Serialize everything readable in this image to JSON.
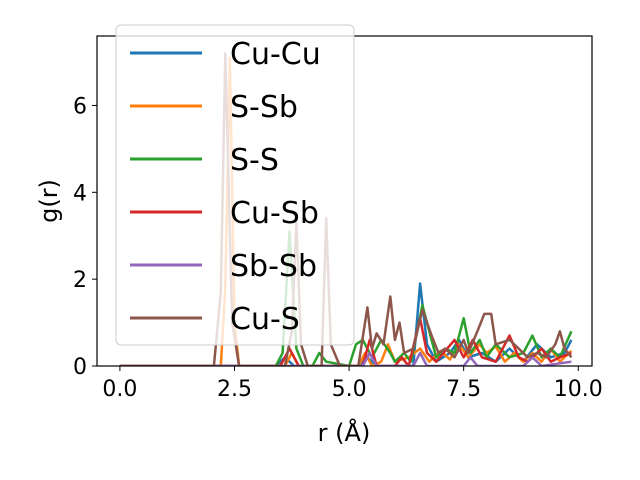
{
  "chart_data": {
    "type": "line",
    "xlabel": "r (Å)",
    "ylabel": "g(r)",
    "xlim": [
      -0.5,
      10.3
    ],
    "ylim": [
      0,
      7.6
    ],
    "xticks": [
      0.0,
      2.5,
      5.0,
      7.5,
      10.0
    ],
    "xtick_labels": [
      "0.0",
      "2.5",
      "5.0",
      "7.5",
      "10.0"
    ],
    "yticks": [
      0,
      2,
      4,
      6
    ],
    "ytick_labels": [
      "0",
      "2",
      "4",
      "6"
    ],
    "grid": false,
    "legend_position": "upper-left",
    "series": [
      {
        "name": "Cu-Cu",
        "color": "#1f77b4",
        "points": [
          [
            0,
            0
          ],
          [
            3.4,
            0
          ],
          [
            3.6,
            0.2
          ],
          [
            3.8,
            0
          ],
          [
            5.2,
            0
          ],
          [
            5.4,
            0.2
          ],
          [
            5.6,
            0
          ],
          [
            6.4,
            0
          ],
          [
            6.55,
            1.9
          ],
          [
            6.7,
            0.5
          ],
          [
            6.9,
            0.1
          ],
          [
            7.2,
            0.3
          ],
          [
            7.4,
            0.6
          ],
          [
            7.6,
            0.2
          ],
          [
            7.9,
            0.3
          ],
          [
            8.2,
            0.1
          ],
          [
            8.5,
            0.4
          ],
          [
            8.8,
            0.1
          ],
          [
            9.1,
            0.5
          ],
          [
            9.4,
            0.2
          ],
          [
            9.7,
            0.3
          ],
          [
            9.85,
            0.6
          ]
        ]
      },
      {
        "name": "S-Sb",
        "color": "#ff7f0e",
        "points": [
          [
            0,
            0
          ],
          [
            2.2,
            0
          ],
          [
            2.3,
            1.8
          ],
          [
            2.4,
            7.1
          ],
          [
            2.5,
            1.0
          ],
          [
            2.6,
            0
          ],
          [
            3.6,
            0
          ],
          [
            3.75,
            0.3
          ],
          [
            3.9,
            0
          ],
          [
            5.2,
            0
          ],
          [
            5.35,
            0.3
          ],
          [
            5.5,
            0
          ],
          [
            5.7,
            0.1
          ],
          [
            5.85,
            0.5
          ],
          [
            6.0,
            0.1
          ],
          [
            6.3,
            0.2
          ],
          [
            6.55,
            0.4
          ],
          [
            6.75,
            0.1
          ],
          [
            7.0,
            0.35
          ],
          [
            7.2,
            0.15
          ],
          [
            7.4,
            0.5
          ],
          [
            7.6,
            0.2
          ],
          [
            7.85,
            0.5
          ],
          [
            8.0,
            0.3
          ],
          [
            8.2,
            0.45
          ],
          [
            8.4,
            0.1
          ],
          [
            8.6,
            0.3
          ],
          [
            8.8,
            0.1
          ],
          [
            9.0,
            0.3
          ],
          [
            9.2,
            0.1
          ],
          [
            9.4,
            0.4
          ],
          [
            9.6,
            0.1
          ],
          [
            9.85,
            0.35
          ]
        ]
      },
      {
        "name": "S-S",
        "color": "#2ca02c",
        "points": [
          [
            0,
            0
          ],
          [
            3.4,
            0
          ],
          [
            3.55,
            0.3
          ],
          [
            3.7,
            3.1
          ],
          [
            3.85,
            0.4
          ],
          [
            4.0,
            0
          ],
          [
            4.2,
            0
          ],
          [
            4.35,
            0.3
          ],
          [
            4.5,
            0.1
          ],
          [
            5.0,
            0
          ],
          [
            5.15,
            0.5
          ],
          [
            5.3,
            0.6
          ],
          [
            5.5,
            0.2
          ],
          [
            5.7,
            0.6
          ],
          [
            5.9,
            0.3
          ],
          [
            6.0,
            0.1
          ],
          [
            6.2,
            0.3
          ],
          [
            6.35,
            0.1
          ],
          [
            6.6,
            1.4
          ],
          [
            6.75,
            0.8
          ],
          [
            6.9,
            0.2
          ],
          [
            7.1,
            0.4
          ],
          [
            7.3,
            0.3
          ],
          [
            7.5,
            1.1
          ],
          [
            7.65,
            0.3
          ],
          [
            7.85,
            0.6
          ],
          [
            8.0,
            0.2
          ],
          [
            8.2,
            0.5
          ],
          [
            8.5,
            0.2
          ],
          [
            8.8,
            0.3
          ],
          [
            9.0,
            0.7
          ],
          [
            9.2,
            0.2
          ],
          [
            9.4,
            0.4
          ],
          [
            9.6,
            0.2
          ],
          [
            9.85,
            0.8
          ]
        ]
      },
      {
        "name": "Cu-Sb",
        "color": "#d62728",
        "points": [
          [
            0,
            0
          ],
          [
            3.5,
            0
          ],
          [
            3.7,
            0.4
          ],
          [
            3.9,
            0
          ],
          [
            5.3,
            0
          ],
          [
            5.45,
            0.6
          ],
          [
            5.6,
            0
          ],
          [
            6.0,
            0
          ],
          [
            6.15,
            0.2
          ],
          [
            6.3,
            0
          ],
          [
            6.55,
            1.1
          ],
          [
            6.7,
            0.3
          ],
          [
            6.9,
            0.1
          ],
          [
            7.3,
            0.6
          ],
          [
            7.5,
            0.2
          ],
          [
            7.7,
            0.6
          ],
          [
            7.9,
            0.2
          ],
          [
            8.2,
            0.1
          ],
          [
            8.5,
            0.7
          ],
          [
            8.7,
            0.2
          ],
          [
            8.9,
            0.1
          ],
          [
            9.2,
            0.4
          ],
          [
            9.4,
            0.1
          ],
          [
            9.6,
            0.2
          ],
          [
            9.85,
            0.3
          ]
        ]
      },
      {
        "name": "Sb-Sb",
        "color": "#9467bd",
        "points": [
          [
            0,
            0
          ],
          [
            5.3,
            0
          ],
          [
            5.45,
            0.3
          ],
          [
            5.6,
            0
          ],
          [
            6.4,
            0
          ],
          [
            6.55,
            0.3
          ],
          [
            6.7,
            0
          ],
          [
            7.5,
            0
          ],
          [
            7.65,
            0.2
          ],
          [
            7.8,
            0
          ],
          [
            8.8,
            0
          ],
          [
            9.0,
            0.2
          ],
          [
            9.2,
            0
          ],
          [
            9.85,
            0.1
          ]
        ]
      },
      {
        "name": "Cu-S",
        "color": "#8c564b",
        "points": [
          [
            0,
            0
          ],
          [
            2.05,
            0
          ],
          [
            2.2,
            1.7
          ],
          [
            2.3,
            7.2
          ],
          [
            2.45,
            1.0
          ],
          [
            2.6,
            0
          ],
          [
            3.6,
            0
          ],
          [
            3.75,
            0.8
          ],
          [
            3.85,
            3.3
          ],
          [
            3.95,
            0.5
          ],
          [
            4.1,
            0
          ],
          [
            4.4,
            0
          ],
          [
            4.5,
            3.4
          ],
          [
            4.6,
            0.5
          ],
          [
            4.8,
            0
          ],
          [
            5.2,
            0
          ],
          [
            5.4,
            1.35
          ],
          [
            5.5,
            0.4
          ],
          [
            5.6,
            0.75
          ],
          [
            5.75,
            0.5
          ],
          [
            5.9,
            1.6
          ],
          [
            6.0,
            0.6
          ],
          [
            6.1,
            1.0
          ],
          [
            6.2,
            0.3
          ],
          [
            6.4,
            0.4
          ],
          [
            6.6,
            1.3
          ],
          [
            6.8,
            0.7
          ],
          [
            6.95,
            0.3
          ],
          [
            7.1,
            0.4
          ],
          [
            7.3,
            0.2
          ],
          [
            7.5,
            0.6
          ],
          [
            7.6,
            0.3
          ],
          [
            7.8,
            0.8
          ],
          [
            7.95,
            1.2
          ],
          [
            8.1,
            1.2
          ],
          [
            8.2,
            0.5
          ],
          [
            8.5,
            0.6
          ],
          [
            8.7,
            0.4
          ],
          [
            8.9,
            0.2
          ],
          [
            9.1,
            0.3
          ],
          [
            9.3,
            0.2
          ],
          [
            9.5,
            0.5
          ],
          [
            9.6,
            0.8
          ],
          [
            9.7,
            0.4
          ],
          [
            9.85,
            0.2
          ]
        ]
      }
    ]
  }
}
